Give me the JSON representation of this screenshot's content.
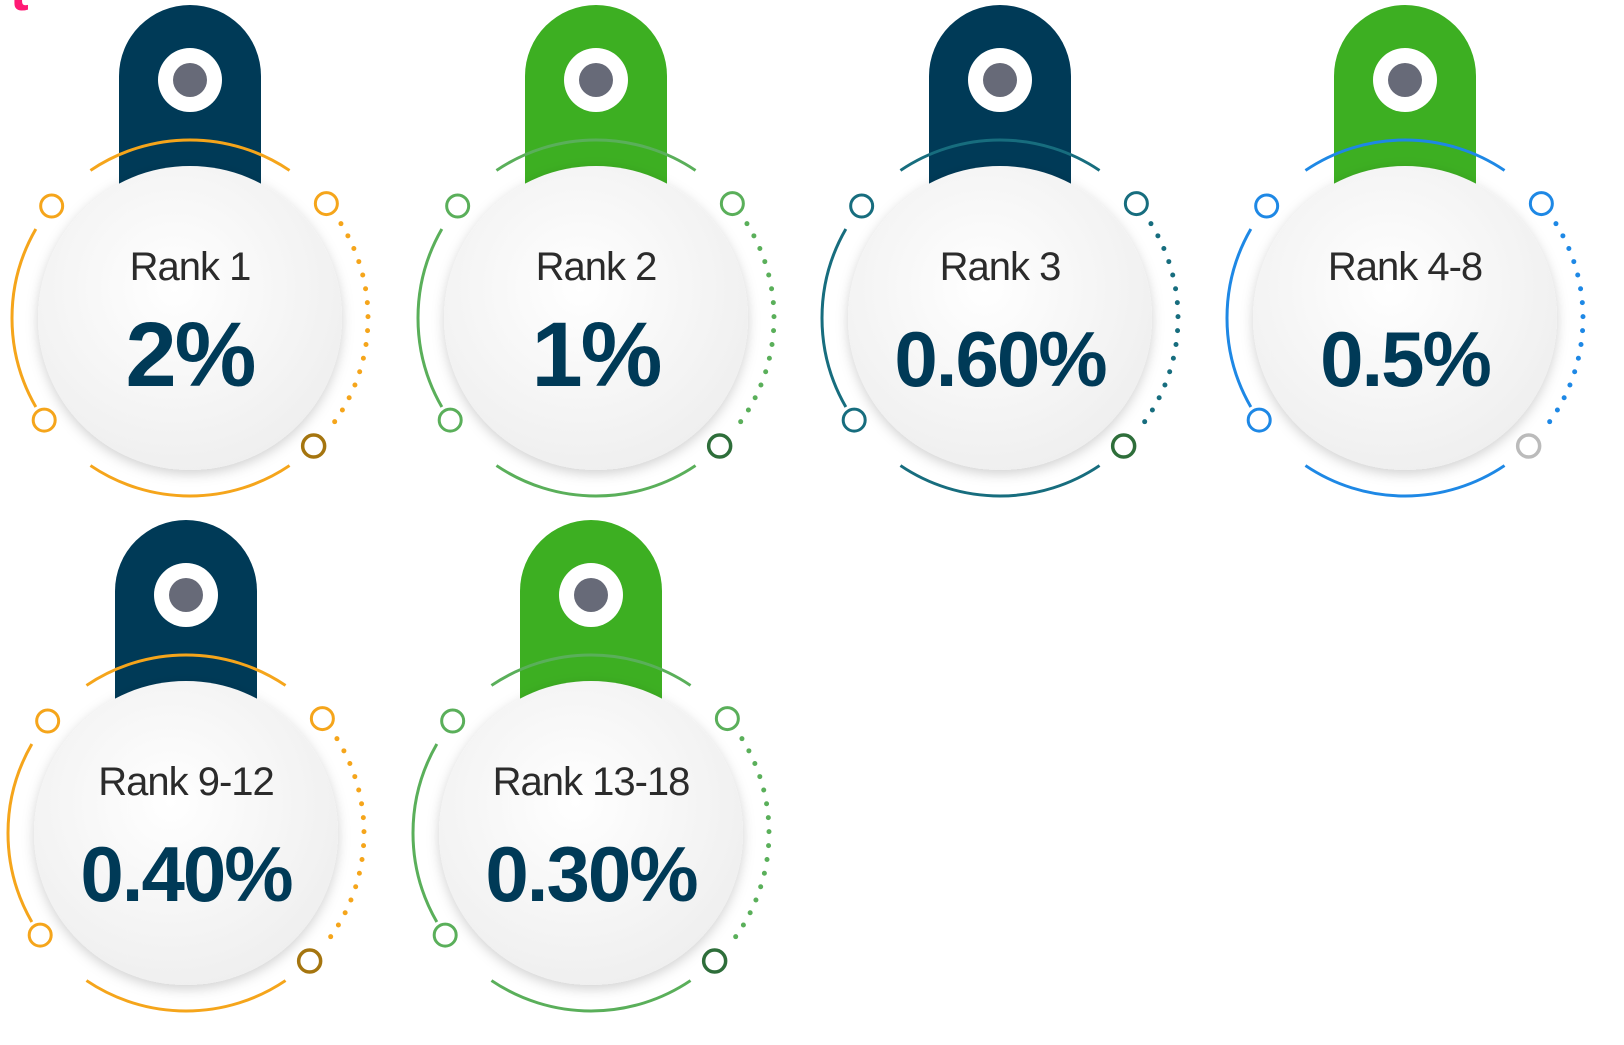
{
  "header": {
    "fragment": "t"
  },
  "cards": [
    {
      "label": "Rank 1",
      "value": "2%"
    },
    {
      "label": "Rank 2",
      "value": "1%"
    },
    {
      "label": "Rank 3",
      "value": "0.60%"
    },
    {
      "label": "Rank 4-8",
      "value": "0.5%"
    },
    {
      "label": "Rank 9-12",
      "value": "0.40%"
    },
    {
      "label": "Rank 13-18",
      "value": "0.30%"
    }
  ]
}
